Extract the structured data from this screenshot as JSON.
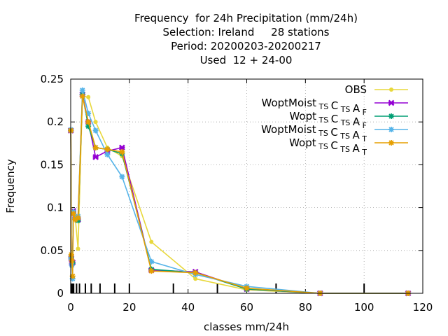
{
  "chart_data": {
    "type": "line",
    "title_lines": [
      "Frequency  for 24h Precipitation (mm/24h)",
      "Selection: Ireland     28 stations",
      "Period: 20200203-20200217",
      "Used  12 + 24-00"
    ],
    "xlabel": "classes mm/24h",
    "ylabel": "Frequency",
    "xlim": [
      0,
      120
    ],
    "ylim": [
      0,
      0.25
    ],
    "xticks": [
      "0",
      "20",
      "40",
      "60",
      "80",
      "100",
      "120"
    ],
    "yticks": [
      "0",
      "0.05",
      "0.1",
      "0.15",
      "0.2",
      "0.25"
    ],
    "grid": true,
    "legend_position": "top-right",
    "class_marks": [
      0.1,
      0.3,
      0.5,
      0.8,
      1,
      2,
      3,
      5,
      7,
      10,
      15,
      20,
      35,
      50,
      70,
      100
    ],
    "x": [
      0.05,
      0.2,
      0.4,
      0.65,
      0.9,
      1.5,
      2.5,
      4,
      6,
      8.5,
      12.5,
      17.5,
      27.5,
      42.5,
      60,
      85,
      115
    ],
    "series": [
      {
        "name_parts": [
          [
            "OBS",
            ""
          ]
        ],
        "color": "#e8d83c",
        "marker": "circle",
        "values": [
          0.19,
          0.044,
          0.034,
          0.036,
          0.095,
          0.09,
          0.052,
          0.23,
          0.229,
          0.2,
          0.17,
          0.16,
          0.06,
          0.017,
          0.004,
          0.0,
          0.0
        ]
      },
      {
        "name_parts": [
          [
            "WoptMoist",
            "TS"
          ],
          [
            "C",
            "TS"
          ],
          [
            "A",
            "F"
          ]
        ],
        "color": "#9400d3",
        "marker": "cross",
        "values": [
          0.19,
          0.041,
          0.035,
          0.036,
          0.096,
          0.088,
          0.086,
          0.232,
          0.2,
          0.159,
          0.166,
          0.17,
          0.027,
          0.025,
          0.005,
          0.0,
          0.0
        ]
      },
      {
        "name_parts": [
          [
            "Wopt",
            "TS"
          ],
          [
            "C",
            "TS"
          ],
          [
            "A",
            "F"
          ]
        ],
        "color": "#009e73",
        "marker": "star",
        "values": [
          0.19,
          0.042,
          0.033,
          0.035,
          0.095,
          0.087,
          0.085,
          0.232,
          0.195,
          0.17,
          0.168,
          0.163,
          0.028,
          0.024,
          0.005,
          0.0,
          0.0
        ]
      },
      {
        "name_parts": [
          [
            "WoptMoist",
            "TS"
          ],
          [
            "C",
            "TS"
          ],
          [
            "A",
            "T"
          ]
        ],
        "color": "#56b4e9",
        "marker": "star",
        "values": [
          0.191,
          0.04,
          0.033,
          0.017,
          0.095,
          0.087,
          0.09,
          0.237,
          0.21,
          0.19,
          0.162,
          0.136,
          0.037,
          0.022,
          0.008,
          0.0,
          0.0
        ]
      },
      {
        "name_parts": [
          [
            "Wopt",
            "TS"
          ],
          [
            "C",
            "TS"
          ],
          [
            "A",
            "T"
          ]
        ],
        "color": "#e69f00",
        "marker": "star",
        "values": [
          0.19,
          0.045,
          0.038,
          0.02,
          0.093,
          0.086,
          0.088,
          0.23,
          0.2,
          0.17,
          0.168,
          0.165,
          0.026,
          0.024,
          0.006,
          0.0,
          0.0
        ]
      }
    ]
  }
}
